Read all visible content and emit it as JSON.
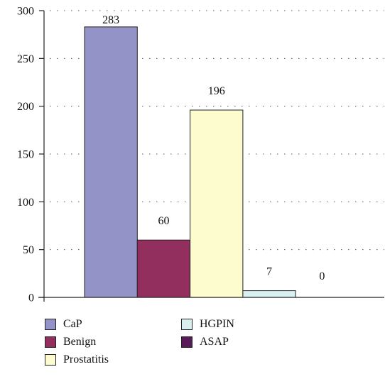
{
  "chart_data": {
    "type": "bar",
    "title": "",
    "xlabel": "",
    "ylabel": "",
    "ylim": [
      0,
      300
    ],
    "yticks": [
      0,
      50,
      100,
      150,
      200,
      250,
      300
    ],
    "grid": "dotted horizontal",
    "legend_position": "bottom",
    "series": [
      {
        "name": "CaP",
        "value": 283,
        "label": "283",
        "color": "#9393c8"
      },
      {
        "name": "Benign",
        "value": 60,
        "label": "60",
        "color": "#922f5f"
      },
      {
        "name": "Prostatitis",
        "value": 196,
        "label": "196",
        "color": "#fdfccf"
      },
      {
        "name": "HGPIN",
        "value": 7,
        "label": "7",
        "color": "#d8f0f0"
      },
      {
        "name": "ASAP",
        "value": 0,
        "label": "0",
        "color": "#5a1a5a"
      }
    ]
  }
}
